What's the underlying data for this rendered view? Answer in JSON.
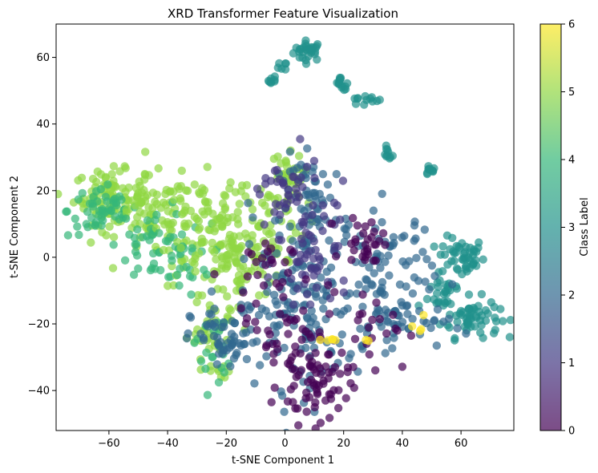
{
  "chart_data": {
    "type": "scatter",
    "title": "XRD Transformer Feature Visualization",
    "xlabel": "t-SNE Component 1",
    "ylabel": "t-SNE Component 2",
    "xlim": [
      -78,
      78
    ],
    "ylim": [
      -52,
      70
    ],
    "xticks": [
      -60,
      -40,
      -20,
      0,
      20,
      40,
      60
    ],
    "yticks": [
      -40,
      -20,
      0,
      20,
      40,
      60
    ],
    "xtick_labels": [
      "−60",
      "−40",
      "−20",
      "0",
      "20",
      "40",
      "60"
    ],
    "ytick_labels": [
      "−40",
      "−20",
      "0",
      "20",
      "40",
      "60"
    ],
    "colorbar": {
      "label": "Class Label",
      "range": [
        0,
        6
      ],
      "ticks": [
        0,
        1,
        2,
        3,
        4,
        5,
        6
      ],
      "tick_labels": [
        "0",
        "1",
        "2",
        "3",
        "4",
        "5",
        "6"
      ],
      "colormap": "viridis",
      "alpha": 0.7
    },
    "grid": false,
    "clusters": [
      {
        "class": 3,
        "center": [
          8,
          62
        ],
        "spread": [
          2.5,
          1.5
        ],
        "count": 30
      },
      {
        "class": 3,
        "center": [
          -4,
          53
        ],
        "spread": [
          0.8,
          0.8
        ],
        "count": 8
      },
      {
        "class": 3,
        "center": [
          -1,
          57
        ],
        "spread": [
          0.8,
          0.8
        ],
        "count": 6
      },
      {
        "class": 3,
        "center": [
          19,
          53
        ],
        "spread": [
          0.8,
          0.8
        ],
        "count": 8
      },
      {
        "class": 3,
        "center": [
          20,
          51
        ],
        "spread": [
          0.8,
          0.8
        ],
        "count": 6
      },
      {
        "class": 3,
        "center": [
          27,
          47
        ],
        "spread": [
          3,
          0.8
        ],
        "count": 12
      },
      {
        "class": 3,
        "center": [
          35,
          31
        ],
        "spread": [
          0.8,
          1
        ],
        "count": 10
      },
      {
        "class": 3,
        "center": [
          49,
          26
        ],
        "spread": [
          1.2,
          0.8
        ],
        "count": 10
      },
      {
        "class": 3,
        "center": [
          60,
          0
        ],
        "spread": [
          4,
          3
        ],
        "count": 50
      },
      {
        "class": 3,
        "center": [
          55,
          -10
        ],
        "spread": [
          3,
          3
        ],
        "count": 25
      },
      {
        "class": 3,
        "center": [
          63,
          -18
        ],
        "spread": [
          5,
          3
        ],
        "count": 60
      },
      {
        "class": 5,
        "center": [
          -60,
          18
        ],
        "spread": [
          6,
          4
        ],
        "count": 90
      },
      {
        "class": 4,
        "center": [
          -62,
          14
        ],
        "spread": [
          6,
          4
        ],
        "count": 50
      },
      {
        "class": 5,
        "center": [
          -45,
          12
        ],
        "spread": [
          6,
          6
        ],
        "count": 80
      },
      {
        "class": 4,
        "center": [
          -45,
          5
        ],
        "spread": [
          6,
          6
        ],
        "count": 40
      },
      {
        "class": 5,
        "center": [
          -30,
          8
        ],
        "spread": [
          6,
          8
        ],
        "count": 70
      },
      {
        "class": 4,
        "center": [
          -35,
          0
        ],
        "spread": [
          5,
          5
        ],
        "count": 25
      },
      {
        "class": 5,
        "center": [
          -18,
          0
        ],
        "spread": [
          6,
          12
        ],
        "count": 110
      },
      {
        "class": 5,
        "center": [
          -5,
          10
        ],
        "spread": [
          6,
          8
        ],
        "count": 60
      },
      {
        "class": 5,
        "center": [
          0,
          25
        ],
        "spread": [
          3,
          3
        ],
        "count": 30
      },
      {
        "class": 5,
        "center": [
          -25,
          -25
        ],
        "spread": [
          3,
          6
        ],
        "count": 35
      },
      {
        "class": 4,
        "center": [
          -25,
          -28
        ],
        "spread": [
          3,
          6
        ],
        "count": 20
      },
      {
        "class": 2,
        "center": [
          -20,
          -25
        ],
        "spread": [
          6,
          5
        ],
        "count": 60
      },
      {
        "class": 2,
        "center": [
          5,
          -15
        ],
        "spread": [
          10,
          12
        ],
        "count": 140
      },
      {
        "class": 2,
        "center": [
          10,
          15
        ],
        "spread": [
          6,
          8
        ],
        "count": 70
      },
      {
        "class": 2,
        "center": [
          35,
          -5
        ],
        "spread": [
          8,
          10
        ],
        "count": 80
      },
      {
        "class": 2,
        "center": [
          40,
          -20
        ],
        "spread": [
          8,
          4
        ],
        "count": 40
      },
      {
        "class": 1,
        "center": [
          10,
          0
        ],
        "spread": [
          6,
          10
        ],
        "count": 60
      },
      {
        "class": 1,
        "center": [
          0,
          18
        ],
        "spread": [
          6,
          6
        ],
        "count": 40
      },
      {
        "class": 0,
        "center": [
          10,
          -38
        ],
        "spread": [
          6,
          6
        ],
        "count": 70
      },
      {
        "class": 0,
        "center": [
          28,
          5
        ],
        "spread": [
          4,
          4
        ],
        "count": 30
      },
      {
        "class": 0,
        "center": [
          0,
          -20
        ],
        "spread": [
          8,
          8
        ],
        "count": 40
      },
      {
        "class": 0,
        "center": [
          30,
          -20
        ],
        "spread": [
          6,
          6
        ],
        "count": 20
      },
      {
        "class": 0,
        "center": [
          -10,
          -5
        ],
        "spread": [
          6,
          6
        ],
        "count": 20
      },
      {
        "class": 6,
        "center": [
          15,
          -25
        ],
        "spread": [
          3,
          2
        ],
        "count": 5
      },
      {
        "class": 6,
        "center": [
          45,
          -20
        ],
        "spread": [
          2,
          2
        ],
        "count": 4
      },
      {
        "class": 6,
        "center": [
          28,
          -25
        ],
        "spread": [
          1,
          1
        ],
        "count": 2
      }
    ]
  }
}
